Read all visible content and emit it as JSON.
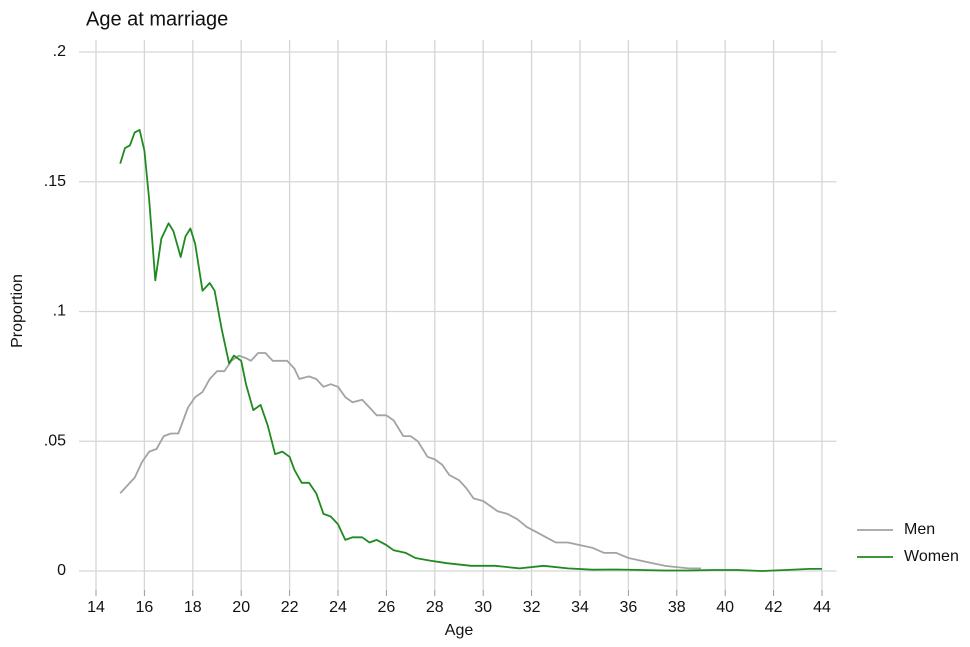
{
  "chart_data": {
    "type": "line",
    "title": "Age at marriage",
    "xlabel": "Age",
    "ylabel": "Proportion",
    "xlim": [
      13.3,
      44.6
    ],
    "ylim": [
      -0.004,
      0.2
    ],
    "xticks": [
      14,
      16,
      18,
      20,
      22,
      24,
      26,
      28,
      30,
      32,
      34,
      36,
      38,
      40,
      42,
      44
    ],
    "yticks": [
      0,
      {
        "value": 0.05,
        "label": ".05"
      },
      {
        "value": 0.1,
        "label": ".1"
      },
      {
        "value": 0.15,
        "label": ".15"
      },
      {
        "value": 0.2,
        "label": ".2"
      }
    ],
    "grid": true,
    "legend": "right",
    "series": [
      {
        "name": "Men",
        "color": "#a3a3a3",
        "x": [
          15.0,
          15.4,
          15.6,
          15.9,
          16.2,
          16.5,
          16.8,
          17.1,
          17.4,
          17.8,
          18.1,
          18.4,
          18.7,
          19.0,
          19.3,
          19.6,
          19.9,
          20.2,
          20.4,
          20.7,
          21.0,
          21.3,
          21.6,
          21.9,
          22.2,
          22.4,
          22.8,
          23.1,
          23.4,
          23.7,
          24.0,
          24.3,
          24.6,
          25.0,
          25.3,
          25.6,
          26.0,
          26.3,
          26.7,
          27.0,
          27.3,
          27.7,
          28.0,
          28.3,
          28.6,
          29.0,
          29.3,
          29.6,
          30.0,
          30.3,
          30.6,
          31.0,
          31.4,
          31.8,
          32.2,
          32.6,
          33.0,
          33.5,
          34.0,
          34.5,
          35.0,
          35.5,
          36.0,
          36.5,
          37.0,
          37.5,
          38.0,
          38.5,
          39.0
        ],
        "values": [
          0.03,
          0.034,
          0.036,
          0.042,
          0.046,
          0.047,
          0.052,
          0.053,
          0.053,
          0.063,
          0.067,
          0.069,
          0.074,
          0.077,
          0.077,
          0.081,
          0.083,
          0.082,
          0.081,
          0.084,
          0.084,
          0.081,
          0.081,
          0.081,
          0.078,
          0.074,
          0.075,
          0.074,
          0.071,
          0.072,
          0.071,
          0.067,
          0.065,
          0.066,
          0.063,
          0.06,
          0.06,
          0.058,
          0.052,
          0.052,
          0.05,
          0.044,
          0.043,
          0.041,
          0.037,
          0.035,
          0.032,
          0.028,
          0.027,
          0.025,
          0.023,
          0.022,
          0.02,
          0.017,
          0.015,
          0.013,
          0.011,
          0.011,
          0.01,
          0.009,
          0.007,
          0.007,
          0.005,
          0.004,
          0.003,
          0.002,
          0.0015,
          0.001,
          0.001
        ]
      },
      {
        "name": "Women",
        "color": "#1f8a1f",
        "x": [
          15.0,
          15.2,
          15.4,
          15.6,
          15.8,
          16.0,
          16.2,
          16.45,
          16.7,
          17.0,
          17.2,
          17.5,
          17.7,
          17.9,
          18.1,
          18.4,
          18.7,
          18.9,
          19.2,
          19.5,
          19.7,
          20.0,
          20.2,
          20.5,
          20.8,
          21.1,
          21.4,
          21.7,
          22.0,
          22.2,
          22.5,
          22.8,
          23.1,
          23.4,
          23.7,
          24.0,
          24.3,
          24.6,
          25.0,
          25.3,
          25.6,
          26.0,
          26.3,
          26.8,
          27.2,
          27.8,
          28.5,
          29.5,
          30.5,
          31.5,
          32.5,
          33.5,
          34.5,
          35.5,
          36.5,
          37.5,
          38.5,
          39.5,
          40.5,
          41.5,
          42.5,
          43.5,
          44.0
        ],
        "values": [
          0.157,
          0.163,
          0.164,
          0.169,
          0.17,
          0.162,
          0.143,
          0.112,
          0.128,
          0.134,
          0.131,
          0.121,
          0.129,
          0.132,
          0.126,
          0.108,
          0.111,
          0.108,
          0.093,
          0.08,
          0.083,
          0.081,
          0.072,
          0.062,
          0.064,
          0.056,
          0.045,
          0.046,
          0.044,
          0.039,
          0.034,
          0.034,
          0.03,
          0.022,
          0.021,
          0.018,
          0.012,
          0.013,
          0.013,
          0.011,
          0.012,
          0.01,
          0.008,
          0.007,
          0.005,
          0.004,
          0.003,
          0.002,
          0.002,
          0.001,
          0.002,
          0.001,
          0.0005,
          0.0006,
          0.0004,
          0.0002,
          0.0002,
          0.0004,
          0.0004,
          0,
          0.0004,
          0.0008,
          0.0008
        ]
      }
    ]
  }
}
